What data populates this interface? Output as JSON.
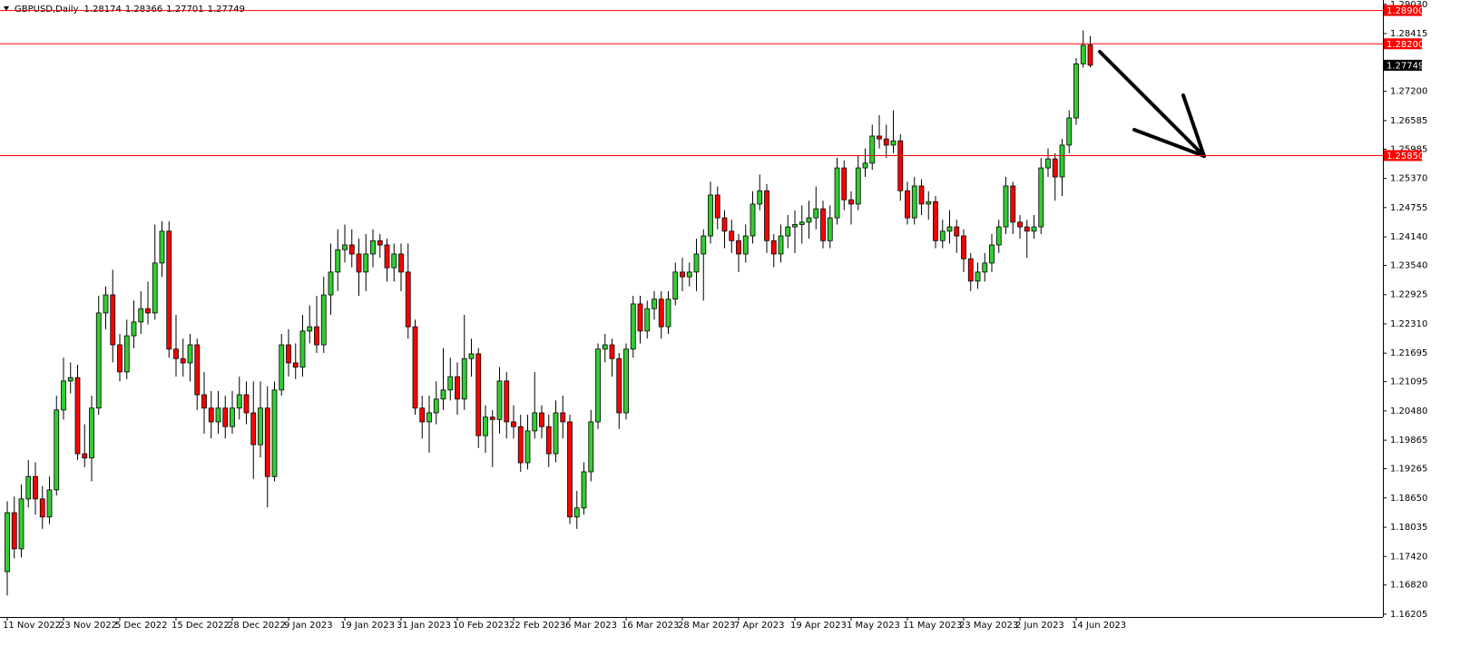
{
  "chart_data": {
    "type": "candlestick",
    "symbol": "GBPUSD,Daily",
    "up_color": "#32cd32",
    "down_color": "#ff0000",
    "ylim": [
      1.16147,
      1.29121
    ],
    "yticks": [
      {
        "value": 1.2903,
        "label": "1.29030"
      },
      1.28415,
      {
        "value": 1.272,
        "label": "1.27200"
      },
      1.26585,
      1.25985,
      {
        "value": 1.2537,
        "label": "1.25370"
      },
      1.24755,
      {
        "value": 1.2414,
        "label": "1.24140"
      },
      {
        "value": 1.2354,
        "label": "1.23540"
      },
      1.22925,
      {
        "value": 1.2231,
        "label": "1.22310"
      },
      1.21695,
      1.21095,
      {
        "value": 1.2048,
        "label": "1.20480"
      },
      1.19865,
      1.19265,
      {
        "value": 1.1865,
        "label": "1.18650"
      },
      1.18035,
      {
        "value": 1.1742,
        "label": "1.17420"
      },
      {
        "value": 1.1682,
        "label": "1.16820"
      },
      1.16205
    ],
    "levels": [
      {
        "value": 1.289,
        "label": "1.28900"
      },
      {
        "value": 1.282,
        "label": "1.28200"
      },
      {
        "value": 1.2585,
        "label": "1.25850"
      }
    ],
    "level_color": "#ff0000",
    "categories": [
      "11 Nov 2022",
      null,
      null,
      null,
      null,
      null,
      null,
      null,
      "23 Nov 2022",
      null,
      null,
      null,
      null,
      null,
      null,
      null,
      "5 Dec 2022",
      null,
      null,
      null,
      null,
      null,
      null,
      null,
      "15 Dec 2022",
      null,
      null,
      null,
      null,
      null,
      null,
      null,
      "28 Dec 2022",
      null,
      null,
      null,
      null,
      null,
      null,
      null,
      "9 Jan 2023",
      null,
      null,
      null,
      null,
      null,
      null,
      null,
      "19 Jan 2023",
      null,
      null,
      null,
      null,
      null,
      null,
      null,
      "31 Jan 2023",
      null,
      null,
      null,
      null,
      null,
      null,
      null,
      "10 Feb 2023",
      null,
      null,
      null,
      null,
      null,
      null,
      null,
      "22 Feb 2023",
      null,
      null,
      null,
      null,
      null,
      null,
      null,
      "6 Mar 2023",
      null,
      null,
      null,
      null,
      null,
      null,
      null,
      "16 Mar 2023",
      null,
      null,
      null,
      null,
      null,
      null,
      null,
      "28 Mar 2023",
      null,
      null,
      null,
      null,
      null,
      null,
      null,
      "7 Apr 2023",
      null,
      null,
      null,
      null,
      null,
      null,
      null,
      "19 Apr 2023",
      null,
      null,
      null,
      null,
      null,
      null,
      null,
      "1 May 2023",
      null,
      null,
      null,
      null,
      null,
      null,
      null,
      "11 May 2023",
      null,
      null,
      null,
      null,
      null,
      null,
      null,
      "23 May 2023",
      null,
      null,
      null,
      null,
      null,
      null,
      null,
      "2 Jun 2023",
      null,
      null,
      null,
      null,
      null,
      null,
      null,
      "14 Jun 2023",
      null,
      null
    ],
    "ohlc": [
      [
        1.171,
        1.1858,
        1.166,
        1.1834
      ],
      [
        1.1834,
        1.1868,
        1.1738,
        1.1758
      ],
      [
        1.1758,
        1.1893,
        1.174,
        1.1863
      ],
      [
        1.1863,
        1.1945,
        1.1845,
        1.191
      ],
      [
        1.191,
        1.194,
        1.183,
        1.1863
      ],
      [
        1.1863,
        1.189,
        1.18,
        1.1825
      ],
      [
        1.1825,
        1.191,
        1.181,
        1.1882
      ],
      [
        1.1882,
        1.208,
        1.187,
        1.205
      ],
      [
        1.205,
        1.216,
        1.203,
        1.2111
      ],
      [
        1.2111,
        1.215,
        1.2085,
        1.2118
      ],
      [
        1.2118,
        1.2145,
        1.1945,
        1.1958
      ],
      [
        1.1958,
        1.202,
        1.193,
        1.1949
      ],
      [
        1.1949,
        1.208,
        1.19,
        1.2054
      ],
      [
        1.2054,
        1.229,
        1.204,
        1.2254
      ],
      [
        1.2254,
        1.231,
        1.222,
        1.2292
      ],
      [
        1.2292,
        1.2345,
        1.215,
        1.2187
      ],
      [
        1.2187,
        1.221,
        1.211,
        1.213
      ],
      [
        1.213,
        1.224,
        1.2115,
        1.2206
      ],
      [
        1.2206,
        1.228,
        1.218,
        1.2235
      ],
      [
        1.2235,
        1.23,
        1.221,
        1.2263
      ],
      [
        1.2263,
        1.232,
        1.223,
        1.2254
      ],
      [
        1.2254,
        1.244,
        1.224,
        1.2359
      ],
      [
        1.2359,
        1.2447,
        1.233,
        1.2426
      ],
      [
        1.2426,
        1.2447,
        1.216,
        1.2178
      ],
      [
        1.2178,
        1.225,
        1.212,
        1.2158
      ],
      [
        1.2158,
        1.22,
        1.212,
        1.2149
      ],
      [
        1.2149,
        1.221,
        1.211,
        1.2187
      ],
      [
        1.2187,
        1.22,
        1.205,
        1.2082
      ],
      [
        1.2082,
        1.213,
        1.2,
        1.2054
      ],
      [
        1.2054,
        1.209,
        1.199,
        1.2025
      ],
      [
        1.2025,
        1.209,
        1.2,
        1.2054
      ],
      [
        1.2054,
        1.208,
        1.199,
        1.2015
      ],
      [
        1.2015,
        1.209,
        1.2,
        1.2054
      ],
      [
        1.2054,
        1.212,
        1.203,
        1.2082
      ],
      [
        1.2082,
        1.211,
        1.202,
        1.2044
      ],
      [
        1.2044,
        1.211,
        1.1905,
        1.1977
      ],
      [
        1.1977,
        1.211,
        1.195,
        1.2054
      ],
      [
        1.2054,
        1.21,
        1.1845,
        1.191
      ],
      [
        1.191,
        1.211,
        1.19,
        1.2092
      ],
      [
        1.2092,
        1.221,
        1.208,
        1.2187
      ],
      [
        1.2187,
        1.222,
        1.212,
        1.2149
      ],
      [
        1.2149,
        1.219,
        1.2115,
        1.214
      ],
      [
        1.214,
        1.225,
        1.212,
        1.2216
      ],
      [
        1.2216,
        1.227,
        1.219,
        1.2225
      ],
      [
        1.2225,
        1.229,
        1.217,
        1.2187
      ],
      [
        1.2187,
        1.233,
        1.217,
        1.2292
      ],
      [
        1.2292,
        1.24,
        1.225,
        1.234
      ],
      [
        1.234,
        1.243,
        1.23,
        1.2387
      ],
      [
        1.2387,
        1.244,
        1.236,
        1.2397
      ],
      [
        1.2397,
        1.243,
        1.235,
        1.2378
      ],
      [
        1.2378,
        1.241,
        1.229,
        1.234
      ],
      [
        1.234,
        1.242,
        1.23,
        1.2378
      ],
      [
        1.2378,
        1.243,
        1.235,
        1.2406
      ],
      [
        1.2406,
        1.242,
        1.237,
        1.2397
      ],
      [
        1.2397,
        1.241,
        1.232,
        1.2349
      ],
      [
        1.2349,
        1.24,
        1.232,
        1.2378
      ],
      [
        1.2378,
        1.24,
        1.23,
        1.234
      ],
      [
        1.234,
        1.24,
        1.22,
        1.2225
      ],
      [
        1.2225,
        1.224,
        1.204,
        1.2054
      ],
      [
        1.2054,
        1.208,
        1.199,
        1.2025
      ],
      [
        1.2025,
        1.208,
        1.196,
        1.2044
      ],
      [
        1.2044,
        1.211,
        1.202,
        1.2073
      ],
      [
        1.2073,
        1.218,
        1.205,
        1.2092
      ],
      [
        1.2092,
        1.216,
        1.207,
        1.212
      ],
      [
        1.212,
        1.215,
        1.204,
        1.2073
      ],
      [
        1.2073,
        1.225,
        1.205,
        1.2158
      ],
      [
        1.2158,
        1.22,
        1.212,
        1.2168
      ],
      [
        1.2168,
        1.218,
        1.197,
        1.1996
      ],
      [
        1.1996,
        1.206,
        1.196,
        1.2035
      ],
      [
        1.2035,
        1.205,
        1.193,
        1.203
      ],
      [
        1.203,
        1.214,
        1.2,
        1.2111
      ],
      [
        1.2111,
        1.213,
        1.199,
        1.2025
      ],
      [
        1.2025,
        1.206,
        1.199,
        1.2015
      ],
      [
        1.2015,
        1.204,
        1.192,
        1.1939
      ],
      [
        1.1939,
        1.204,
        1.1925,
        1.2006
      ],
      [
        1.2006,
        1.213,
        1.199,
        1.2044
      ],
      [
        1.2044,
        1.206,
        1.199,
        1.2015
      ],
      [
        1.2015,
        1.204,
        1.193,
        1.1958
      ],
      [
        1.1958,
        1.207,
        1.194,
        1.2044
      ],
      [
        1.2044,
        1.208,
        1.199,
        1.2025
      ],
      [
        1.2025,
        1.204,
        1.181,
        1.1825
      ],
      [
        1.1825,
        1.188,
        1.18,
        1.1844
      ],
      [
        1.1844,
        1.194,
        1.183,
        1.192
      ],
      [
        1.192,
        1.205,
        1.19,
        1.2025
      ],
      [
        1.2025,
        1.219,
        1.201,
        1.2178
      ],
      [
        1.2178,
        1.221,
        1.215,
        1.2187
      ],
      [
        1.2187,
        1.22,
        1.212,
        1.2158
      ],
      [
        1.2158,
        1.217,
        1.201,
        1.2044
      ],
      [
        1.2044,
        1.219,
        1.203,
        1.2178
      ],
      [
        1.2178,
        1.229,
        1.216,
        1.2273
      ],
      [
        1.2273,
        1.229,
        1.219,
        1.2216
      ],
      [
        1.2216,
        1.228,
        1.22,
        1.2263
      ],
      [
        1.2263,
        1.23,
        1.224,
        1.2283
      ],
      [
        1.2283,
        1.23,
        1.22,
        1.2225
      ],
      [
        1.2225,
        1.23,
        1.221,
        1.2283
      ],
      [
        1.2283,
        1.236,
        1.227,
        1.234
      ],
      [
        1.234,
        1.237,
        1.23,
        1.233
      ],
      [
        1.233,
        1.236,
        1.231,
        1.234
      ],
      [
        1.234,
        1.241,
        1.23,
        1.2378
      ],
      [
        1.2378,
        1.243,
        1.228,
        1.2416
      ],
      [
        1.2416,
        1.253,
        1.24,
        1.2502
      ],
      [
        1.2502,
        1.252,
        1.243,
        1.2454
      ],
      [
        1.2454,
        1.247,
        1.239,
        1.2426
      ],
      [
        1.2426,
        1.245,
        1.238,
        1.2406
      ],
      [
        1.2406,
        1.242,
        1.234,
        1.2378
      ],
      [
        1.2378,
        1.244,
        1.236,
        1.2416
      ],
      [
        1.2416,
        1.251,
        1.24,
        1.2483
      ],
      [
        1.2483,
        1.2545,
        1.247,
        1.2511
      ],
      [
        1.2511,
        1.2525,
        1.238,
        1.2406
      ],
      [
        1.2406,
        1.242,
        1.235,
        1.2378
      ],
      [
        1.2378,
        1.244,
        1.236,
        1.2416
      ],
      [
        1.2416,
        1.246,
        1.239,
        1.2435
      ],
      [
        1.2435,
        1.247,
        1.238,
        1.244
      ],
      [
        1.244,
        1.248,
        1.24,
        1.2445
      ],
      [
        1.2445,
        1.249,
        1.241,
        1.2454
      ],
      [
        1.2454,
        1.252,
        1.243,
        1.2473
      ],
      [
        1.2473,
        1.249,
        1.239,
        1.2406
      ],
      [
        1.2406,
        1.248,
        1.239,
        1.2454
      ],
      [
        1.2454,
        1.258,
        1.244,
        1.2559
      ],
      [
        1.2559,
        1.2575,
        1.247,
        1.2492
      ],
      [
        1.2492,
        1.251,
        1.244,
        1.2483
      ],
      [
        1.2483,
        1.2585,
        1.247,
        1.2559
      ],
      [
        1.2559,
        1.26,
        1.254,
        1.2569
      ],
      [
        1.2569,
        1.265,
        1.2555,
        1.2626
      ],
      [
        1.2626,
        1.267,
        1.26,
        1.262
      ],
      [
        1.262,
        1.265,
        1.258,
        1.2607
      ],
      [
        1.2607,
        1.268,
        1.259,
        1.2616
      ],
      [
        1.2616,
        1.263,
        1.249,
        1.2511
      ],
      [
        1.2511,
        1.253,
        1.244,
        1.2454
      ],
      [
        1.2454,
        1.254,
        1.244,
        1.2521
      ],
      [
        1.2521,
        1.2535,
        1.246,
        1.2483
      ],
      [
        1.2483,
        1.251,
        1.245,
        1.2488
      ],
      [
        1.2488,
        1.25,
        1.239,
        1.2406
      ],
      [
        1.2406,
        1.245,
        1.239,
        1.2426
      ],
      [
        1.2426,
        1.247,
        1.24,
        1.2435
      ],
      [
        1.2435,
        1.245,
        1.238,
        1.2416
      ],
      [
        1.2416,
        1.243,
        1.234,
        1.2368
      ],
      [
        1.2368,
        1.238,
        1.23,
        1.2321
      ],
      [
        1.2321,
        1.236,
        1.2305,
        1.234
      ],
      [
        1.234,
        1.238,
        1.232,
        1.2359
      ],
      [
        1.2359,
        1.242,
        1.234,
        1.2397
      ],
      [
        1.2397,
        1.245,
        1.238,
        1.2435
      ],
      [
        1.2435,
        1.254,
        1.242,
        1.2521
      ],
      [
        1.2521,
        1.253,
        1.242,
        1.2445
      ],
      [
        1.2445,
        1.246,
        1.241,
        1.2435
      ],
      [
        1.2435,
        1.245,
        1.237,
        1.2426
      ],
      [
        1.2426,
        1.246,
        1.241,
        1.2435
      ],
      [
        1.2435,
        1.258,
        1.242,
        1.2559
      ],
      [
        1.2559,
        1.26,
        1.254,
        1.2578
      ],
      [
        1.2578,
        1.259,
        1.249,
        1.254
      ],
      [
        1.254,
        1.262,
        1.25,
        1.2607
      ],
      [
        1.2607,
        1.268,
        1.259,
        1.2664
      ],
      [
        1.2664,
        1.279,
        1.265,
        1.2778
      ],
      [
        1.2778,
        1.2848,
        1.277,
        1.2817
      ],
      [
        1.28174,
        1.28366,
        1.27701,
        1.27749
      ]
    ]
  }
}
